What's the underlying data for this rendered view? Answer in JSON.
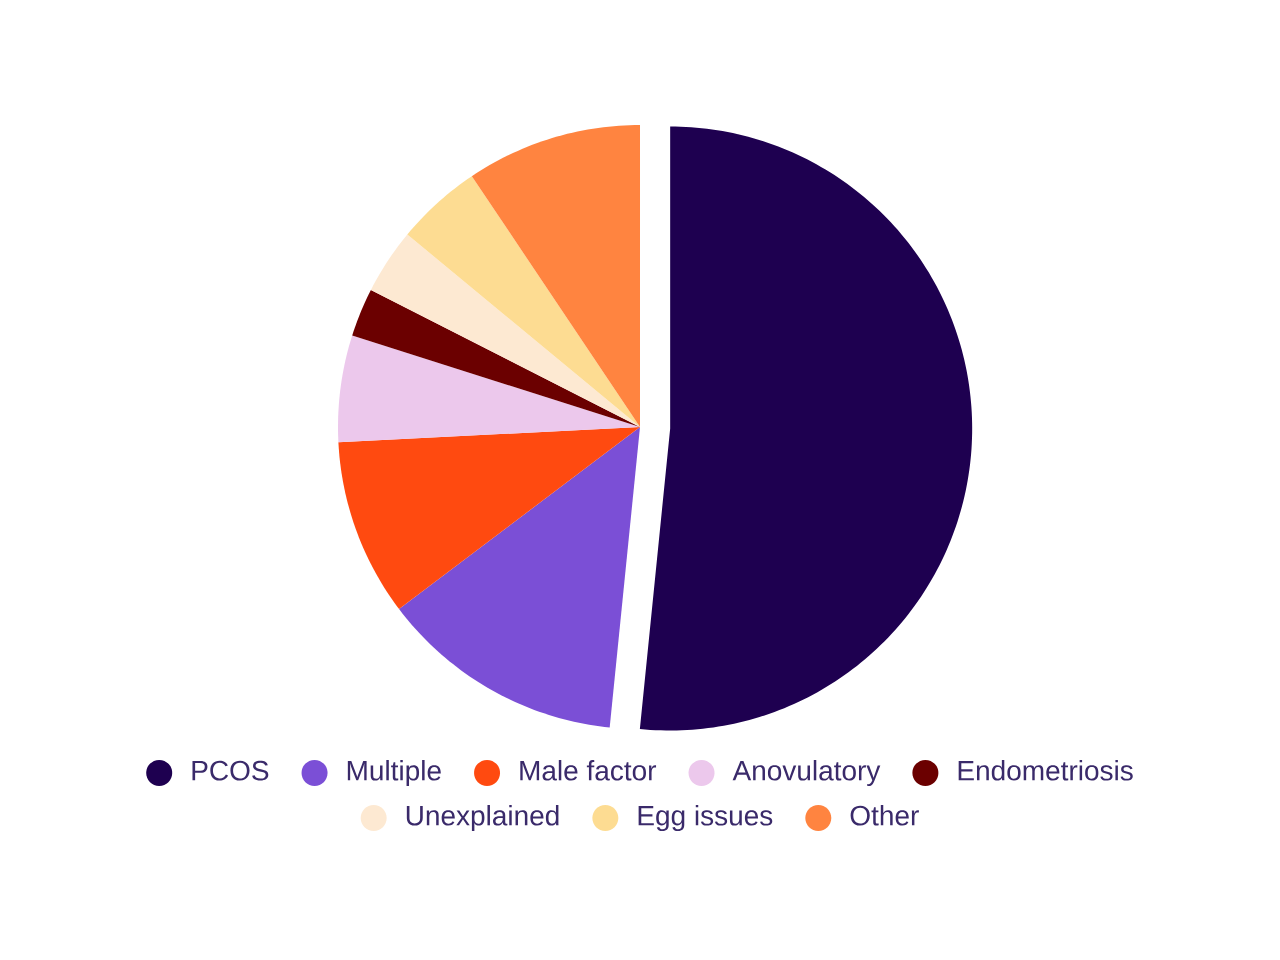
{
  "chart_data": {
    "type": "pie",
    "legend": "bottom",
    "marker": "circle",
    "categories": [
      "PCOS",
      "Multiple",
      "Male factor",
      "Anovulatory",
      "Endometriosis",
      "Unexplained",
      "Egg issues",
      "Other"
    ],
    "values": [
      51.6,
      13.1,
      9.5,
      5.7,
      2.6,
      3.5,
      4.6,
      9.4
    ],
    "colors": [
      "#1e0050",
      "#7b4fd6",
      "#ff4a10",
      "#ecc8ec",
      "#6b0000",
      "#fde9d2",
      "#fddc92",
      "#ff8440"
    ]
  }
}
